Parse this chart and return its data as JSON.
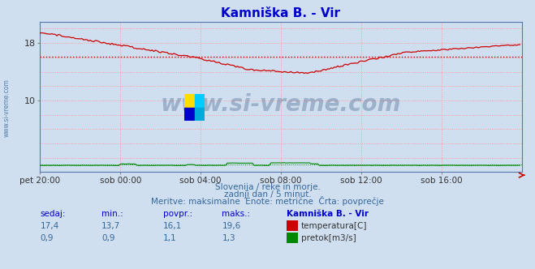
{
  "title": "Kamniška B. - Vir",
  "title_color": "#0000cc",
  "bg_color": "#d0dff0",
  "plot_bg_color": "#d0dff0",
  "grid_color": "#ff9999",
  "xlabel_ticks": [
    "pet 20:00",
    "sob 00:00",
    "sob 04:00",
    "sob 08:00",
    "sob 12:00",
    "sob 16:00"
  ],
  "xlim": [
    0,
    288
  ],
  "ylim": [
    0,
    21
  ],
  "temp_color": "#cc0000",
  "flow_color": "#008800",
  "avg_temp": 16.1,
  "avg_flow": 1.1,
  "watermark": "www.si-vreme.com",
  "watermark_color": "#1a3a6a",
  "watermark_alpha": 0.28,
  "footer_line1": "Slovenija / reke in morje.",
  "footer_line2": "zadnji dan / 5 minut.",
  "footer_line3": "Meritve: maksimalne  Enote: metrične  Črta: povprečje",
  "footer_color": "#336699",
  "table_header": [
    "sedaj:",
    "min.:",
    "povpr.:",
    "maks.:",
    "Kamniška B. - Vir"
  ],
  "table_row1": [
    "17,4",
    "13,7",
    "16,1",
    "19,6",
    "temperatura[C]"
  ],
  "table_row2": [
    "0,9",
    "0,9",
    "1,1",
    "1,3",
    "pretok[m3/s]"
  ],
  "table_color_header": "#0000cc",
  "table_color_data": "#336699",
  "side_label": "www.si-vreme.com",
  "side_label_color": "#336699",
  "logo_colors": [
    "#ffdd00",
    "#00ccff",
    "#0000cc",
    "#00aadd"
  ]
}
